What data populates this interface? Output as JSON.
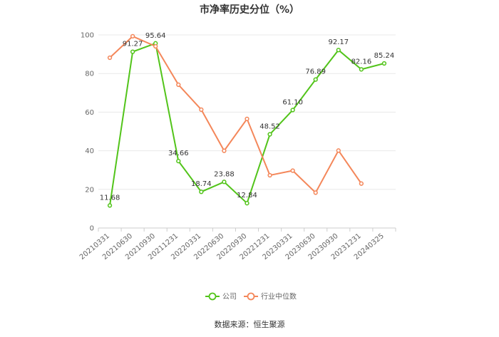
{
  "chart_data": {
    "type": "line",
    "title": "市净率历史分位（%）",
    "categories": [
      "20210331",
      "20210630",
      "20210930",
      "20211231",
      "20220331",
      "20220630",
      "20220930",
      "20221231",
      "20230331",
      "20230630",
      "20230930",
      "20231231",
      "20240325"
    ],
    "ylim": [
      0,
      100
    ],
    "yticks": [
      0,
      20,
      40,
      60,
      80,
      100
    ],
    "grid": true,
    "legend_position": "bottom",
    "series": [
      {
        "name": "公司",
        "color": "#52c41a",
        "values": [
          11.68,
          91.27,
          95.64,
          34.66,
          18.74,
          23.88,
          12.84,
          48.52,
          61.1,
          76.89,
          92.17,
          82.16,
          85.24
        ],
        "labels": [
          "11.68",
          "91.27",
          "95.64",
          "34.66",
          "18.74",
          "23.88",
          "12.84",
          "48.52",
          "61.10",
          "76.89",
          "92.17",
          "82.16",
          "85.24"
        ]
      },
      {
        "name": "行业中位数",
        "color": "#f4875a",
        "values": [
          88.2,
          99.3,
          94.1,
          74.2,
          61.3,
          40.0,
          56.5,
          27.3,
          29.7,
          18.3,
          40.1,
          23.0,
          null
        ]
      }
    ],
    "source": "数据来源：恒生聚源"
  }
}
